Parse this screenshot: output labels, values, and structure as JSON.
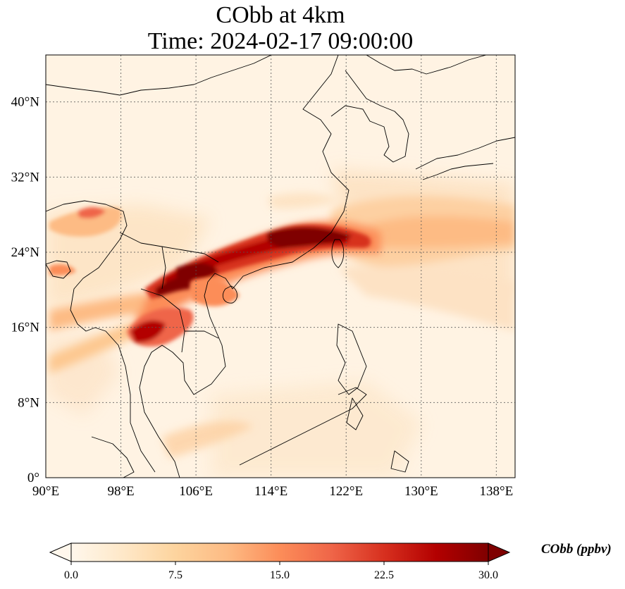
{
  "title": {
    "line1": "CObb at 4km",
    "line2": "Time: 2024-02-17 09:00:00"
  },
  "map": {
    "extent": {
      "lon_min": 90,
      "lon_max": 140,
      "lat_min": 0,
      "lat_max": 45
    },
    "projection": "PlateCarree",
    "gridlines": "dotted",
    "lon_ticks": [
      90,
      98,
      106,
      114,
      122,
      130,
      138
    ],
    "lat_ticks": [
      0,
      8,
      16,
      24,
      32,
      40
    ],
    "lon_tick_labels": [
      "90°E",
      "98°E",
      "106°E",
      "114°E",
      "122°E",
      "130°E",
      "138°E"
    ],
    "lat_tick_labels": [
      "0°",
      "8°N",
      "16°N",
      "24°N",
      "32°N",
      "40°N"
    ],
    "field": "CObb",
    "plumes": [
      {
        "region": "Indochina to Taiwan main transport belt",
        "level": "high"
      },
      {
        "region": "East China Sea to western Pacific",
        "level": "low-moderate"
      },
      {
        "region": "Northern Thailand / Myanmar",
        "level": "high"
      },
      {
        "region": "Northeast India / Myanmar north",
        "level": "moderate"
      }
    ]
  },
  "colorbar": {
    "label": "CObb (ppbv)",
    "min": 0.0,
    "max": 30.0,
    "extend": "both",
    "colormap": "OrRd",
    "colors": [
      "#fff7ec",
      "#fee8c8",
      "#fdd49e",
      "#fdbb84",
      "#fc8d59",
      "#ef6548",
      "#d7301f",
      "#b30000",
      "#7f0000"
    ],
    "tick_labels": [
      "0.0",
      "7.5",
      "15.0",
      "22.5",
      "30.0"
    ]
  }
}
